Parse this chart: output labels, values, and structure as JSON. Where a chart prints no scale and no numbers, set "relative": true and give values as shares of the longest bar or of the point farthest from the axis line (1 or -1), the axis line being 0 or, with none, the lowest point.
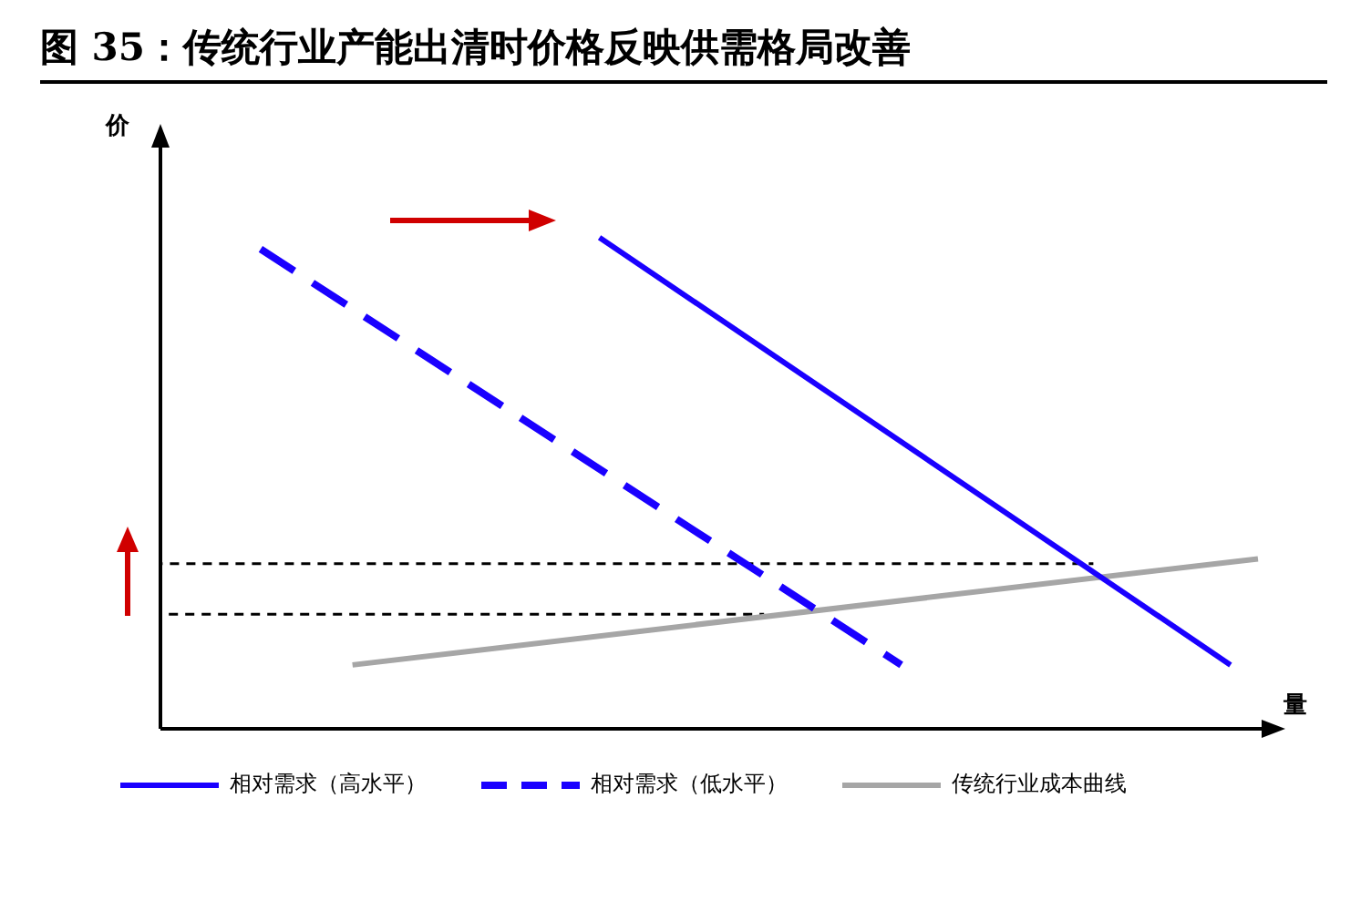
{
  "chart_data": {
    "type": "line",
    "relative": true,
    "title": "图 35：传统行业产能出清时价格反映供需格局改善",
    "xlabel": "量",
    "ylabel": "价",
    "categories": [
      null,
      null,
      null,
      null,
      null,
      null,
      null,
      null,
      null,
      null,
      null,
      null,
      null,
      null,
      null,
      null,
      null,
      null,
      null,
      null,
      null,
      null,
      null,
      null,
      null,
      null,
      null,
      null,
      null,
      null,
      null,
      null,
      null,
      null,
      null,
      null,
      null,
      null,
      null,
      null,
      null
    ],
    "series": [
      {
        "name": "相对需求（高水平）",
        "color": "#1a00ff",
        "line_style": "solid",
        "values": [
          null,
          null,
          null,
          null,
          null,
          null,
          null,
          null,
          null,
          null,
          null,
          null,
          null,
          null,
          null,
          null,
          1,
          null,
          null,
          null,
          null,
          null,
          null,
          null,
          null,
          null,
          null,
          null,
          null,
          null,
          null,
          null,
          null,
          null,
          null,
          null,
          null,
          null,
          null,
          0.13,
          null
        ]
      },
      {
        "name": "相对需求（低水平）",
        "color": "#1a00ff",
        "line_style": "dashed",
        "values": [
          null,
          null,
          null,
          1,
          null,
          null,
          null,
          null,
          null,
          null,
          null,
          null,
          null,
          null,
          null,
          null,
          null,
          null,
          null,
          null,
          null,
          null,
          null,
          null,
          null,
          null,
          null,
          0.13,
          null,
          null,
          null,
          null,
          null,
          null,
          null,
          null,
          null,
          null,
          null,
          null,
          null
        ]
      },
      {
        "name": "传统行业成本曲线",
        "color": "#a6a6a6",
        "line_style": "solid",
        "values": [
          null,
          null,
          null,
          null,
          null,
          null,
          null,
          0.13,
          null,
          null,
          null,
          null,
          null,
          null,
          null,
          null,
          null,
          null,
          null,
          null,
          null,
          null,
          null,
          null,
          null,
          null,
          null,
          null,
          null,
          null,
          null,
          null,
          null,
          null,
          null,
          null,
          null,
          null,
          null,
          null,
          0.346
        ]
      },
      {
        "color": "#000000",
        "line_style": "dashed",
        "values": [
          0.336,
          null,
          null,
          null,
          null,
          null,
          null,
          null,
          null,
          null,
          null,
          null,
          null,
          null,
          null,
          null,
          null,
          null,
          null,
          null,
          null,
          null,
          null,
          null,
          null,
          null,
          null,
          null,
          null,
          null,
          null,
          null,
          null,
          null,
          0.336,
          null,
          null,
          null,
          null,
          null,
          null
        ]
      },
      {
        "color": "#000000",
        "line_style": "dashed",
        "values": [
          0.233,
          null,
          null,
          null,
          null,
          null,
          null,
          null,
          null,
          null,
          null,
          null,
          null,
          null,
          null,
          null,
          null,
          null,
          null,
          null,
          null,
          null,
          0.233,
          null,
          null,
          null,
          null,
          null,
          null,
          null,
          null,
          null,
          null,
          null,
          null,
          null,
          null,
          null,
          null,
          null,
          null
        ]
      }
    ],
    "legend": "bottom",
    "marker": "none"
  }
}
